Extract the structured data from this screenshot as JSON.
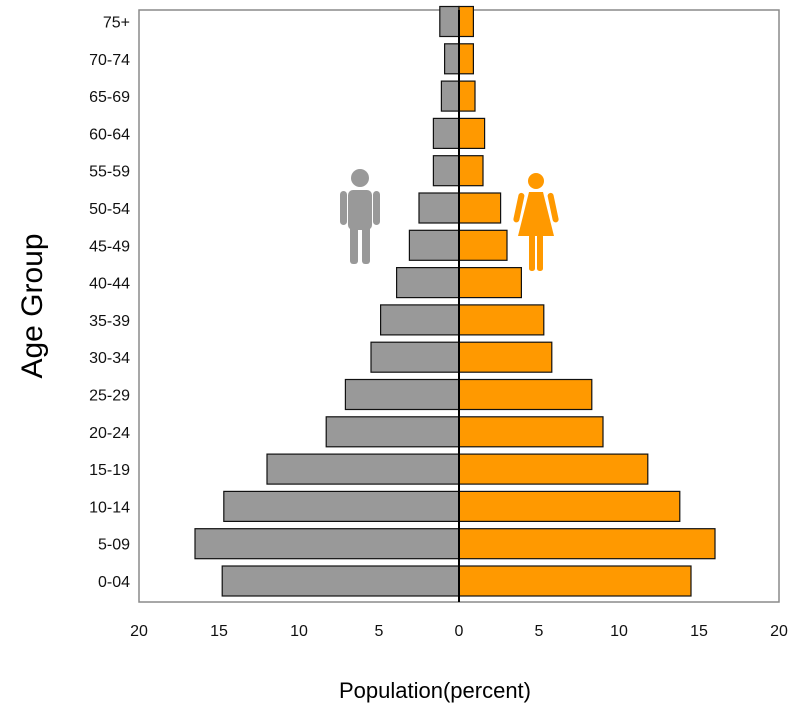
{
  "chart_data": {
    "type": "bar",
    "orientation": "horizontal",
    "subtype": "population-pyramid",
    "title": "",
    "xlabel": "Population(percent)",
    "ylabel": "Age Group",
    "xlim": [
      -20,
      20
    ],
    "xticks": [
      -20,
      -15,
      -10,
      -5,
      0,
      5,
      10,
      15,
      20
    ],
    "xtick_labels": [
      "20",
      "15",
      "10",
      "5",
      "0",
      "5",
      "10",
      "15",
      "20"
    ],
    "categories": [
      "0-04",
      "5-09",
      "10-14",
      "15-19",
      "20-24",
      "25-29",
      "30-34",
      "35-39",
      "40-44",
      "45-49",
      "50-54",
      "55-59",
      "60-64",
      "65-69",
      "70-74",
      "75+"
    ],
    "series": [
      {
        "side": "left",
        "color": "#999999",
        "icon": "male-icon",
        "values": [
          14.8,
          16.5,
          14.7,
          12.0,
          8.3,
          7.1,
          5.5,
          4.9,
          3.9,
          3.1,
          2.5,
          1.6,
          1.6,
          1.1,
          0.9,
          1.2
        ]
      },
      {
        "side": "right",
        "color": "#ff9900",
        "icon": "female-icon",
        "values": [
          14.5,
          16.0,
          13.8,
          11.8,
          9.0,
          8.3,
          5.8,
          5.3,
          3.9,
          3.0,
          2.6,
          1.5,
          1.6,
          1.0,
          0.9,
          0.9
        ]
      }
    ],
    "grid": false,
    "legend": "none"
  }
}
